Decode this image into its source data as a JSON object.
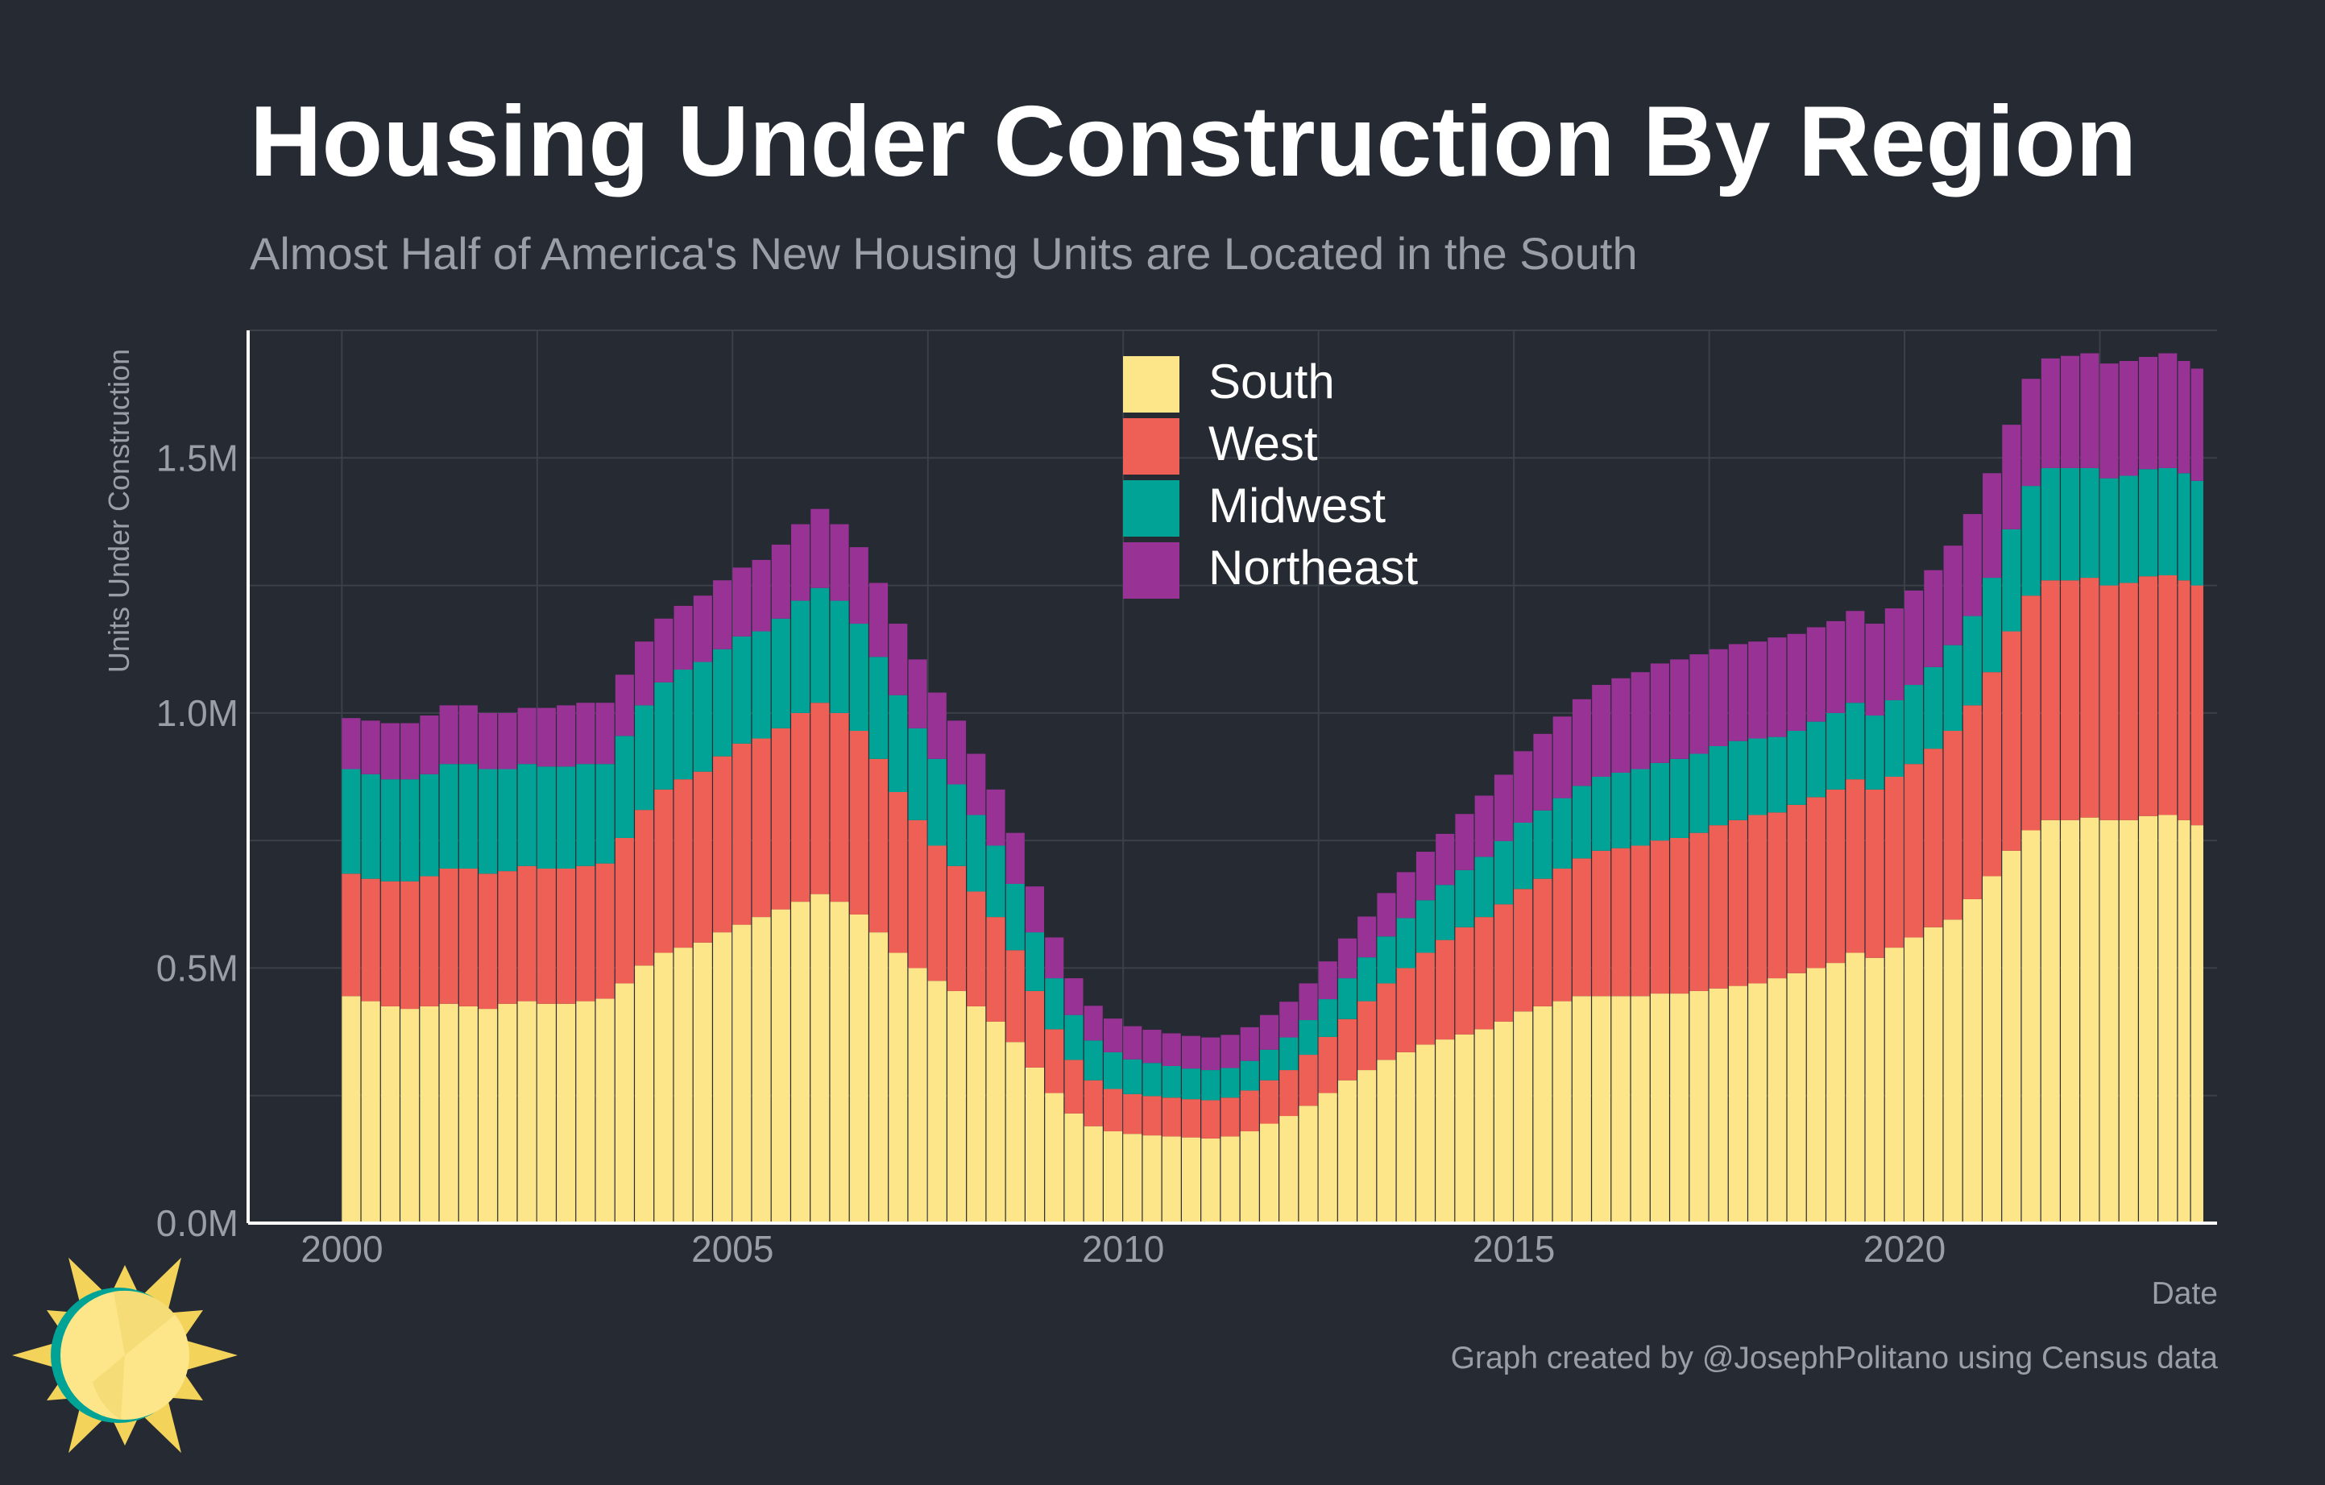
{
  "title": "Housing Under Construction By Region",
  "subtitle": "Almost Half of America's New Housing Units are Located in the South",
  "credit": "Graph created by @JosephPolitano using Census data",
  "colors": {
    "background": "#252a33",
    "grid": "#3b4049",
    "axis": "#ffffff",
    "text_muted": "#9a9ea6",
    "South": "#fde68a",
    "West": "#ee6055",
    "Midwest": "#00a396",
    "Northeast": "#983295"
  },
  "chart_data": {
    "type": "bar",
    "stacked": true,
    "xlabel": "Date",
    "ylabel": "Units Under Construction",
    "x_tick_labels": [
      "2000",
      "2005",
      "2010",
      "2015",
      "2020"
    ],
    "y_tick_labels": [
      "0.0M",
      "0.5M",
      "1.0M",
      "1.5M"
    ],
    "ylim": [
      0,
      1.75
    ],
    "y_unit": "millions of units",
    "x_range": [
      "2000-01",
      "2023-09"
    ],
    "grid": true,
    "legend_position": "top-center",
    "legend": [
      "South",
      "West",
      "Midwest",
      "Northeast"
    ],
    "x": [
      "2000-01",
      "2000-04",
      "2000-07",
      "2000-10",
      "2001-01",
      "2001-04",
      "2001-07",
      "2001-10",
      "2002-01",
      "2002-04",
      "2002-07",
      "2002-10",
      "2003-01",
      "2003-04",
      "2003-07",
      "2003-10",
      "2004-01",
      "2004-04",
      "2004-07",
      "2004-10",
      "2005-01",
      "2005-04",
      "2005-07",
      "2005-10",
      "2006-01",
      "2006-04",
      "2006-07",
      "2006-10",
      "2007-01",
      "2007-04",
      "2007-07",
      "2007-10",
      "2008-01",
      "2008-04",
      "2008-07",
      "2008-10",
      "2009-01",
      "2009-04",
      "2009-07",
      "2009-10",
      "2010-01",
      "2010-04",
      "2010-07",
      "2010-10",
      "2011-01",
      "2011-04",
      "2011-07",
      "2011-10",
      "2012-01",
      "2012-04",
      "2012-07",
      "2012-10",
      "2013-01",
      "2013-04",
      "2013-07",
      "2013-10",
      "2014-01",
      "2014-04",
      "2014-07",
      "2014-10",
      "2015-01",
      "2015-04",
      "2015-07",
      "2015-10",
      "2016-01",
      "2016-04",
      "2016-07",
      "2016-10",
      "2017-01",
      "2017-04",
      "2017-07",
      "2017-10",
      "2018-01",
      "2018-04",
      "2018-07",
      "2018-10",
      "2019-01",
      "2019-04",
      "2019-07",
      "2019-10",
      "2020-01",
      "2020-04",
      "2020-07",
      "2020-10",
      "2021-01",
      "2021-04",
      "2021-07",
      "2021-10",
      "2022-01",
      "2022-04",
      "2022-07",
      "2022-10",
      "2023-01",
      "2023-04",
      "2023-07",
      "2023-09"
    ],
    "series": [
      {
        "name": "South",
        "color": "#fde68a",
        "values": [
          0.445,
          0.435,
          0.425,
          0.42,
          0.425,
          0.43,
          0.425,
          0.42,
          0.43,
          0.435,
          0.43,
          0.43,
          0.435,
          0.44,
          0.47,
          0.505,
          0.53,
          0.54,
          0.55,
          0.57,
          0.585,
          0.6,
          0.615,
          0.63,
          0.645,
          0.63,
          0.605,
          0.57,
          0.53,
          0.5,
          0.475,
          0.455,
          0.425,
          0.395,
          0.355,
          0.305,
          0.255,
          0.215,
          0.19,
          0.18,
          0.175,
          0.172,
          0.17,
          0.168,
          0.166,
          0.17,
          0.18,
          0.195,
          0.21,
          0.23,
          0.255,
          0.28,
          0.3,
          0.32,
          0.335,
          0.35,
          0.36,
          0.37,
          0.38,
          0.395,
          0.415,
          0.425,
          0.435,
          0.445,
          0.445,
          0.445,
          0.445,
          0.45,
          0.45,
          0.455,
          0.46,
          0.465,
          0.47,
          0.48,
          0.49,
          0.5,
          0.51,
          0.53,
          0.52,
          0.54,
          0.56,
          0.58,
          0.595,
          0.635,
          0.68,
          0.73,
          0.77,
          0.79,
          0.79,
          0.795,
          0.79,
          0.79,
          0.798,
          0.8,
          0.79,
          0.78
        ]
      },
      {
        "name": "West",
        "color": "#ee6055",
        "values": [
          0.24,
          0.24,
          0.245,
          0.25,
          0.255,
          0.265,
          0.27,
          0.265,
          0.26,
          0.265,
          0.265,
          0.265,
          0.265,
          0.265,
          0.285,
          0.305,
          0.32,
          0.33,
          0.335,
          0.345,
          0.355,
          0.35,
          0.355,
          0.37,
          0.375,
          0.37,
          0.36,
          0.34,
          0.315,
          0.29,
          0.265,
          0.245,
          0.225,
          0.205,
          0.18,
          0.15,
          0.125,
          0.105,
          0.09,
          0.083,
          0.078,
          0.077,
          0.076,
          0.075,
          0.075,
          0.076,
          0.08,
          0.085,
          0.09,
          0.1,
          0.11,
          0.12,
          0.135,
          0.15,
          0.165,
          0.18,
          0.195,
          0.21,
          0.22,
          0.23,
          0.24,
          0.25,
          0.26,
          0.27,
          0.285,
          0.29,
          0.295,
          0.3,
          0.305,
          0.31,
          0.32,
          0.325,
          0.33,
          0.325,
          0.33,
          0.335,
          0.34,
          0.34,
          0.33,
          0.335,
          0.34,
          0.35,
          0.37,
          0.38,
          0.4,
          0.43,
          0.46,
          0.47,
          0.47,
          0.47,
          0.46,
          0.465,
          0.47,
          0.47,
          0.47,
          0.47
        ]
      },
      {
        "name": "Midwest",
        "color": "#00a396",
        "values": [
          0.205,
          0.205,
          0.2,
          0.2,
          0.2,
          0.205,
          0.205,
          0.205,
          0.2,
          0.2,
          0.2,
          0.2,
          0.2,
          0.195,
          0.2,
          0.205,
          0.21,
          0.215,
          0.215,
          0.21,
          0.21,
          0.21,
          0.215,
          0.22,
          0.225,
          0.22,
          0.21,
          0.2,
          0.19,
          0.18,
          0.17,
          0.16,
          0.15,
          0.14,
          0.13,
          0.115,
          0.1,
          0.088,
          0.078,
          0.072,
          0.068,
          0.065,
          0.062,
          0.06,
          0.059,
          0.058,
          0.058,
          0.06,
          0.064,
          0.068,
          0.074,
          0.08,
          0.086,
          0.092,
          0.098,
          0.103,
          0.108,
          0.112,
          0.118,
          0.124,
          0.13,
          0.134,
          0.138,
          0.142,
          0.145,
          0.148,
          0.15,
          0.152,
          0.155,
          0.155,
          0.155,
          0.155,
          0.15,
          0.148,
          0.145,
          0.148,
          0.15,
          0.15,
          0.145,
          0.15,
          0.155,
          0.16,
          0.168,
          0.175,
          0.185,
          0.2,
          0.215,
          0.22,
          0.22,
          0.215,
          0.21,
          0.21,
          0.21,
          0.21,
          0.21,
          0.205
        ]
      },
      {
        "name": "Northeast",
        "color": "#983295",
        "values": [
          0.1,
          0.105,
          0.11,
          0.11,
          0.115,
          0.115,
          0.115,
          0.11,
          0.11,
          0.11,
          0.115,
          0.12,
          0.12,
          0.12,
          0.12,
          0.125,
          0.125,
          0.125,
          0.13,
          0.135,
          0.135,
          0.14,
          0.145,
          0.15,
          0.155,
          0.15,
          0.15,
          0.145,
          0.14,
          0.135,
          0.13,
          0.125,
          0.12,
          0.11,
          0.1,
          0.09,
          0.08,
          0.072,
          0.068,
          0.066,
          0.065,
          0.065,
          0.064,
          0.064,
          0.064,
          0.065,
          0.066,
          0.068,
          0.07,
          0.072,
          0.074,
          0.078,
          0.08,
          0.085,
          0.09,
          0.095,
          0.1,
          0.11,
          0.12,
          0.13,
          0.14,
          0.15,
          0.16,
          0.17,
          0.18,
          0.185,
          0.19,
          0.195,
          0.195,
          0.195,
          0.19,
          0.19,
          0.19,
          0.195,
          0.19,
          0.185,
          0.18,
          0.18,
          0.18,
          0.18,
          0.185,
          0.19,
          0.195,
          0.2,
          0.205,
          0.205,
          0.21,
          0.215,
          0.22,
          0.225,
          0.225,
          0.225,
          0.22,
          0.225,
          0.22,
          0.22
        ]
      }
    ]
  }
}
